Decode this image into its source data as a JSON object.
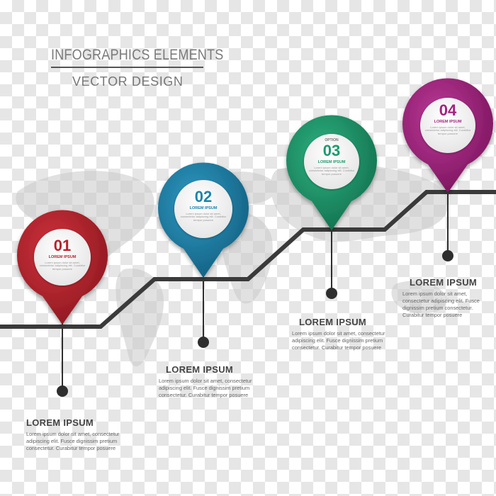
{
  "title": {
    "line1": "INFOGRAPHICS ELEMENTS",
    "line2": "VECTOR DESIGN"
  },
  "colors": {
    "step1": "#b8222c",
    "step2": "#1b84ad",
    "step3": "#1c9a6e",
    "step4": "#a3237f",
    "line": "#3a3a3a"
  },
  "steps": [
    {
      "number": "01",
      "pin_title": "LOREM IPSUM",
      "pin_text": "Lorem ipsum dolor sit amet, consectetur adipiscing elit. Curabitur tempor posuere",
      "heading": "LOREM IPSUM",
      "body": "Lorem ipsum dolor sit amet, consectetur adipiscing elit. Fusce dignissim pretium consectetur. Curabitur tempor posuere"
    },
    {
      "number": "02",
      "pin_title": "LOREM IPSUM",
      "pin_text": "Lorem ipsum dolor sit amet, consectetur adipiscing elit. Curabitur tempor posuere",
      "heading": "LOREM IPSUM",
      "body": "Lorem ipsum dolor sit amet, consectetur adipiscing elit. Fusce dignissim pretium consectetur. Curabitur tempor posuere"
    },
    {
      "option_label": "OPTION",
      "number": "03",
      "pin_title": "LOREM IPSUM",
      "pin_text": "Lorem ipsum dolor sit amet, consectetur adipiscing elit. Curabitur tempor posuere",
      "heading": "LOREM IPSUM",
      "body": "Lorem ipsum dolor sit amet, consectetur adipiscing elit. Fusce dignissim pretium consectetur. Curabitur tempor posuere"
    },
    {
      "number": "04",
      "pin_title": "LOREM IPSUM",
      "pin_text": "Lorem ipsum dolor sit amet, consectetur adipiscing elit. Curabitur tempor posuere",
      "heading": "LOREM IPSUM",
      "body": "Lorem ipsum dolor sit amet, consectetur adipiscing elit. Fusce dignissim pretium consectetur. Curabitur tempor posuere"
    }
  ]
}
